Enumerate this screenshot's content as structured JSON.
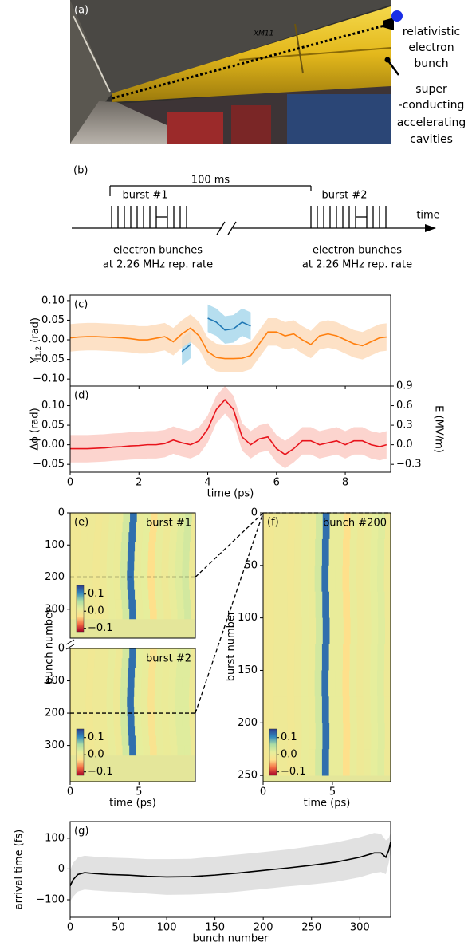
{
  "panel_a": {
    "label": "(a)",
    "tube_label": "XM11",
    "annotation_1": [
      "relativistic",
      "electron",
      "bunch"
    ],
    "annotation_2": [
      "super",
      "-conducting",
      "accelerating",
      "cavities"
    ]
  },
  "panel_b": {
    "label": "(b)",
    "interval": "100 ms",
    "burst_1": "burst #1",
    "burst_2": "burst #2",
    "axis": "time",
    "caption_1": [
      "electron bunches",
      "at 2.26 MHz rep. rate"
    ],
    "caption_2": [
      "electron bunches",
      "at 2.26 MHz rep. rate"
    ]
  },
  "chart_data": [
    {
      "type": "line",
      "panel": "(c)",
      "ylabel": {
        "symbol": "Y",
        "subscript": "1,2",
        "unit": "(rad)"
      },
      "xlim": [
        0,
        9.32
      ],
      "xticks": [
        0,
        2,
        4,
        6,
        8
      ],
      "ylim": [
        -0.118,
        0.114
      ],
      "yticks": [
        {
          "value": -0.1,
          "label": "−0.10"
        },
        {
          "value": -0.05,
          "label": "−0.05"
        },
        {
          "value": 0,
          "label": "0.00"
        },
        {
          "value": 0.05,
          "label": "0.05"
        },
        {
          "value": 0.1,
          "label": "0.10"
        }
      ],
      "x": [
        0,
        0.25,
        0.5,
        0.75,
        1,
        1.25,
        1.5,
        1.75,
        2,
        2.25,
        2.5,
        2.75,
        3,
        3.25,
        3.5,
        3.75,
        4,
        4.25,
        4.5,
        4.75,
        5,
        5.25,
        5.5,
        5.75,
        6,
        6.25,
        6.5,
        6.75,
        7,
        7.25,
        7.5,
        7.75,
        8,
        8.25,
        8.5,
        8.75,
        9,
        9.2
      ],
      "series": [
        {
          "color": "#1f77b4",
          "band_color": "#a9d8ec",
          "spread": 0.035,
          "values": [
            null,
            null,
            null,
            null,
            null,
            null,
            null,
            null,
            null,
            null,
            null,
            null,
            null,
            -0.03,
            -0.012,
            null,
            0.055,
            0.045,
            0.025,
            0.028,
            0.045,
            0.035,
            null,
            null,
            null,
            null,
            null,
            null,
            null,
            null,
            null,
            null,
            null,
            null,
            null,
            null,
            null,
            null
          ]
        },
        {
          "color": "#ff7f0e",
          "band_color": "#fddcbc",
          "spread": 0.035,
          "values": [
            0.005,
            0.007,
            0.008,
            0.008,
            0.007,
            0.006,
            0.005,
            0.003,
            0.0,
            0.0,
            0.004,
            0.008,
            -0.005,
            0.015,
            0.03,
            0.01,
            -0.03,
            -0.045,
            -0.048,
            -0.048,
            -0.047,
            -0.04,
            -0.01,
            0.02,
            0.02,
            0.01,
            0.015,
            0.0,
            -0.012,
            0.01,
            0.015,
            0.01,
            0.0,
            -0.01,
            -0.015,
            -0.005,
            0.005,
            0.007
          ]
        }
      ]
    },
    {
      "type": "line",
      "panel": "(d)",
      "ylabel": "Δϕ (rad)",
      "y2label": "E (MV/m)",
      "xlabel": "time (ps)",
      "xlim": [
        0,
        9.32
      ],
      "xticks": [
        0,
        2,
        4,
        6,
        8
      ],
      "ylim": [
        -0.07,
        0.15
      ],
      "yticks": [
        {
          "value": -0.05,
          "label": "−0.05"
        },
        {
          "value": 0,
          "label": "0.00"
        },
        {
          "value": 0.05,
          "label": "0.05"
        },
        {
          "value": 0.1,
          "label": "0.10"
        }
      ],
      "y2lim": [
        -0.42,
        0.9
      ],
      "y2ticks": [
        {
          "value": -0.3,
          "label": "−0.3"
        },
        {
          "value": 0,
          "label": "0.0"
        },
        0.3,
        0.6,
        0.9
      ],
      "x": [
        0,
        0.25,
        0.5,
        0.75,
        1,
        1.25,
        1.5,
        1.75,
        2,
        2.25,
        2.5,
        2.75,
        3,
        3.25,
        3.5,
        3.75,
        4,
        4.25,
        4.5,
        4.75,
        5,
        5.25,
        5.5,
        5.75,
        6,
        6.25,
        6.5,
        6.75,
        7,
        7.25,
        7.5,
        7.75,
        8,
        8.25,
        8.5,
        8.75,
        9,
        9.2
      ],
      "series": [
        {
          "color": "#e8141c",
          "band_color": "#fcccc6",
          "spread": 0.035,
          "values": [
            -0.01,
            -0.01,
            -0.01,
            -0.009,
            -0.008,
            -0.006,
            -0.005,
            -0.003,
            -0.002,
            0.0,
            0.0,
            0.003,
            0.012,
            0.005,
            0.0,
            0.01,
            0.04,
            0.09,
            0.115,
            0.09,
            0.02,
            0.0,
            0.015,
            0.02,
            -0.01,
            -0.025,
            -0.01,
            0.01,
            0.01,
            0.0,
            0.005,
            0.01,
            0.0,
            0.01,
            0.01,
            0.0,
            -0.005,
            0.0
          ]
        }
      ]
    },
    {
      "type": "heatmap",
      "panel": "(e)",
      "annotation": "burst #1",
      "xlim": [
        0,
        9.1
      ],
      "ylim": [
        390,
        0
      ],
      "yticks": [
        0,
        100,
        200,
        300
      ],
      "x": [
        0,
        0.5,
        1,
        1.5,
        2,
        2.5,
        3,
        3.5,
        4,
        4.5,
        5,
        5.5,
        6,
        6.5,
        7,
        7.5,
        8,
        8.5,
        9
      ],
      "profile": [
        -0.005,
        -0.005,
        0.0,
        0.0,
        -0.005,
        0.0,
        0.01,
        0.005,
        0.03,
        0.12,
        0.01,
        0.015,
        -0.03,
        0.01,
        0.0,
        0.01,
        0.02,
        0.03,
        0.0
      ],
      "row_edges": [
        0,
        30,
        60,
        90,
        120,
        150,
        180,
        210,
        240,
        270,
        300,
        330
      ],
      "row_shift": [
        0.1,
        0.05,
        0.0,
        -0.05,
        -0.08,
        -0.1,
        -0.12,
        -0.1,
        -0.05,
        0.0,
        0.05
      ],
      "marker_row": 200,
      "clim": [
        -0.12,
        0.15
      ],
      "cticks": [
        {
          "value": -0.1,
          "label": "−0.1"
        },
        {
          "value": 0,
          "label": "0.0"
        },
        0.1
      ],
      "colormap": [
        "#a50026",
        "#f46d43",
        "#fee08b",
        "#e6ee9c",
        "#abdda4",
        "#3288bd",
        "#2c3e8c"
      ]
    },
    {
      "type": "heatmap",
      "annotation": "burst #2",
      "ylabel": "bunch number",
      "xlabel": "time (ps)",
      "xlim": [
        0,
        9.1
      ],
      "xticks": [
        0,
        5
      ],
      "ylim": [
        412,
        0
      ],
      "yticks": [
        0,
        100,
        200,
        300
      ],
      "x": [
        0,
        0.5,
        1,
        1.5,
        2,
        2.5,
        3,
        3.5,
        4,
        4.5,
        5,
        5.5,
        6,
        6.5,
        7,
        7.5,
        8,
        8.5,
        9
      ],
      "profile": [
        -0.005,
        0.0,
        0.0,
        -0.005,
        0.0,
        0.0,
        0.01,
        0.0,
        0.03,
        0.12,
        0.015,
        0.01,
        -0.02,
        0.01,
        0.005,
        0.01,
        0.02,
        0.02,
        0.0
      ],
      "row_edges": [
        0,
        30,
        60,
        90,
        120,
        150,
        180,
        210,
        240,
        270,
        300,
        330
      ],
      "row_shift": [
        0.05,
        0.0,
        -0.05,
        -0.08,
        -0.1,
        -0.12,
        -0.1,
        -0.08,
        -0.05,
        0.0,
        0.05
      ],
      "marker_row": 200,
      "clim": [
        -0.12,
        0.15
      ],
      "cticks": [
        {
          "value": -0.1,
          "label": "−0.1"
        },
        {
          "value": 0,
          "label": "0.0"
        },
        0.1
      ],
      "colormap": [
        "#a50026",
        "#f46d43",
        "#fee08b",
        "#e6ee9c",
        "#abdda4",
        "#3288bd",
        "#2c3e8c"
      ]
    },
    {
      "type": "heatmap",
      "panel": "(f)",
      "annotation": "bunch #200",
      "ylabel": "burst number",
      "xlabel": "time (ps)",
      "xlim": [
        0,
        9.2
      ],
      "xticks": [
        0,
        5
      ],
      "ylim": [
        256,
        0
      ],
      "yticks": [
        0,
        50,
        100,
        150,
        200,
        250
      ],
      "x": [
        0,
        0.5,
        1,
        1.5,
        2,
        2.5,
        3,
        3.5,
        4,
        4.5,
        5,
        5.5,
        6,
        6.5,
        7,
        7.5,
        8,
        8.5,
        9
      ],
      "profile": [
        -0.01,
        -0.005,
        0.0,
        0.0,
        -0.005,
        0.0,
        0.01,
        0.005,
        0.03,
        0.12,
        0.01,
        0.01,
        -0.03,
        0.01,
        0.0,
        0.005,
        0.015,
        0.02,
        0.0
      ],
      "row_edges": [
        0,
        25,
        50,
        75,
        100,
        125,
        150,
        175,
        200,
        225,
        250
      ],
      "row_shift": [
        0.05,
        0.0,
        -0.03,
        0.02,
        0.05,
        0.0,
        -0.03,
        0.0,
        0.03,
        0.0
      ],
      "clim": [
        -0.12,
        0.15
      ],
      "cticks": [
        {
          "value": -0.1,
          "label": "−0.1"
        },
        {
          "value": 0,
          "label": "0.0"
        },
        0.1
      ],
      "colormap": [
        "#a50026",
        "#f46d43",
        "#fee08b",
        "#e6ee9c",
        "#abdda4",
        "#3288bd",
        "#2c3e8c"
      ]
    },
    {
      "type": "line",
      "panel": "(g)",
      "xlabel": "bunch number",
      "ylabel": "arrival time (fs)",
      "xlim": [
        0,
        332
      ],
      "xticks": [
        0,
        50,
        100,
        150,
        200,
        250,
        300
      ],
      "ylim": [
        -157,
        154
      ],
      "yticks": [
        {
          "value": -100,
          "label": "−100"
        },
        0,
        100
      ],
      "x": [
        0,
        3,
        8,
        15,
        25,
        40,
        60,
        80,
        100,
        125,
        150,
        175,
        200,
        225,
        250,
        275,
        300,
        315,
        322,
        327,
        330,
        332
      ],
      "series": [
        {
          "color": "#000000",
          "band_color": "#dcdcdc",
          "error": [
            50,
            55,
            55,
            55,
            55,
            55,
            55,
            56,
            58,
            58,
            60,
            60,
            60,
            60,
            62,
            64,
            65,
            65,
            62,
            55,
            40,
            30
          ],
          "values": [
            -55,
            -35,
            -18,
            -12,
            -15,
            -18,
            -20,
            -24,
            -26,
            -25,
            -20,
            -13,
            -5,
            3,
            12,
            22,
            38,
            52,
            52,
            38,
            60,
            88
          ]
        }
      ]
    }
  ]
}
